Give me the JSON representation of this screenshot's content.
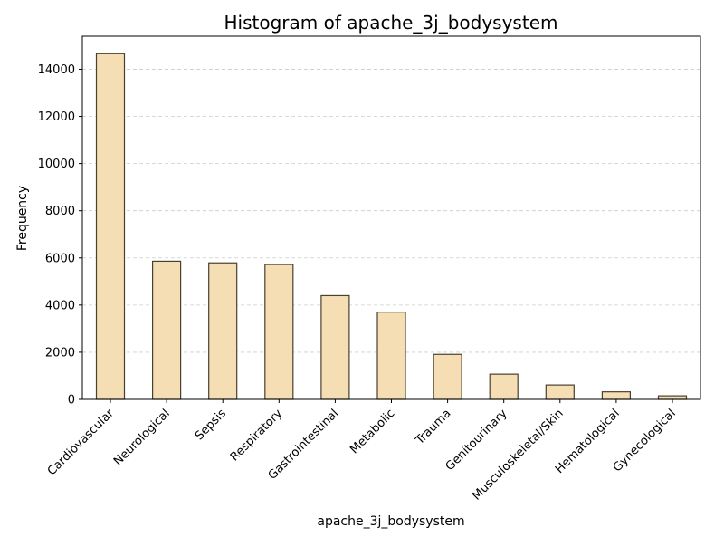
{
  "chart_data": {
    "type": "bar",
    "title": "Histogram of apache_3j_bodysystem",
    "xlabel": "apache_3j_bodysystem",
    "ylabel": "Frequency",
    "categories": [
      "Cardiovascular",
      "Neurological",
      "Sepsis",
      "Respiratory",
      "Gastrointestinal",
      "Metabolic",
      "Trauma",
      "Genitourinary",
      "Musculoskeletal/Skin",
      "Hematological",
      "Gynecological"
    ],
    "values": [
      14660,
      5860,
      5790,
      5720,
      4400,
      3700,
      1910,
      1070,
      610,
      320,
      150
    ],
    "ylim": [
      0,
      15400
    ],
    "yticks": [
      0,
      2000,
      4000,
      6000,
      8000,
      10000,
      12000,
      14000
    ],
    "grid": "y-dashed",
    "bar_color": "#f5deb3",
    "bar_edge_color": "#4a4030",
    "grid_color": "#cccccc"
  }
}
